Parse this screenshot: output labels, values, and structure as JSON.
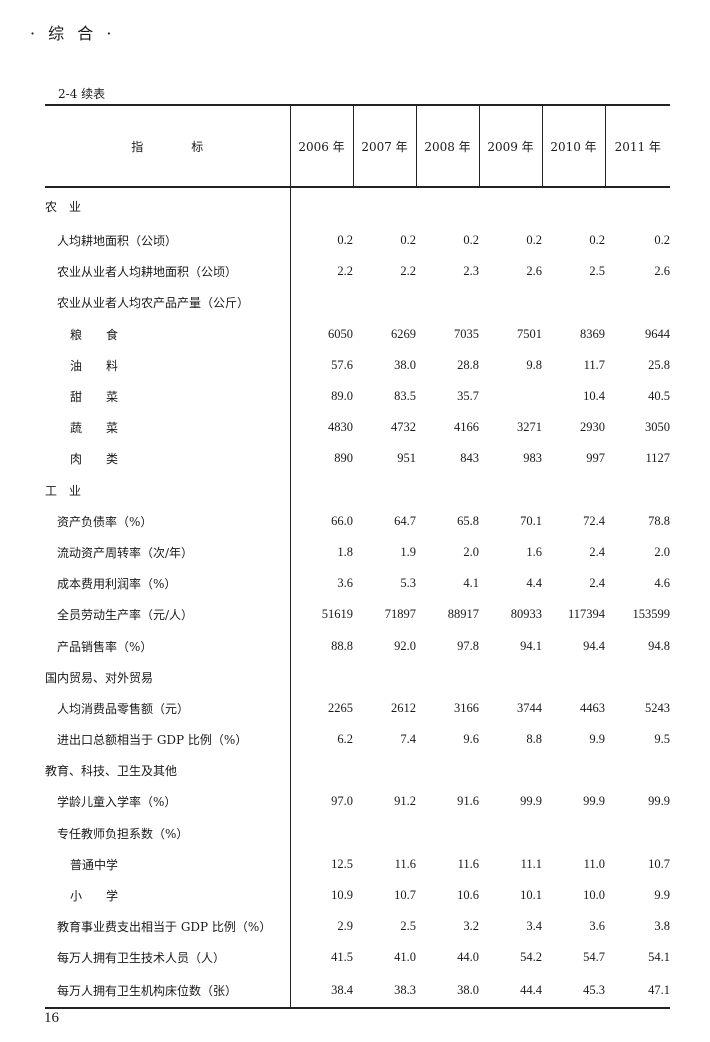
{
  "section_header": "· 综 合 ·",
  "table_caption": "2-4  续表",
  "page_number": "16",
  "table": {
    "columns": [
      "指　　　　标",
      "2006 年",
      "2007 年",
      "2008 年",
      "2009 年",
      "2010 年",
      "2011 年"
    ],
    "rows": [
      {
        "label": "农　业",
        "level": 0,
        "values": [
          "",
          "",
          "",
          "",
          "",
          ""
        ]
      },
      {
        "label": "人均耕地面积（公顷）",
        "level": 1,
        "values": [
          "0.2",
          "0.2",
          "0.2",
          "0.2",
          "0.2",
          "0.2"
        ]
      },
      {
        "label": "农业从业者人均耕地面积（公顷）",
        "level": 1,
        "values": [
          "2.2",
          "2.2",
          "2.3",
          "2.6",
          "2.5",
          "2.6"
        ]
      },
      {
        "label": "农业从业者人均农产品产量（公斤）",
        "level": 1,
        "values": [
          "",
          "",
          "",
          "",
          "",
          ""
        ]
      },
      {
        "label": "粮　　食",
        "level": 2,
        "values": [
          "6050",
          "6269",
          "7035",
          "7501",
          "8369",
          "9644"
        ]
      },
      {
        "label": "油　　料",
        "level": 2,
        "values": [
          "57.6",
          "38.0",
          "28.8",
          "9.8",
          "11.7",
          "25.8"
        ]
      },
      {
        "label": "甜　　菜",
        "level": 2,
        "values": [
          "89.0",
          "83.5",
          "35.7",
          "",
          "10.4",
          "40.5"
        ]
      },
      {
        "label": "蔬　　菜",
        "level": 2,
        "values": [
          "4830",
          "4732",
          "4166",
          "3271",
          "2930",
          "3050"
        ]
      },
      {
        "label": "肉　　类",
        "level": 2,
        "values": [
          "890",
          "951",
          "843",
          "983",
          "997",
          "1127"
        ]
      },
      {
        "label": "工　业",
        "level": 0,
        "values": [
          "",
          "",
          "",
          "",
          "",
          ""
        ]
      },
      {
        "label": "资产负债率（%）",
        "level": 1,
        "values": [
          "66.0",
          "64.7",
          "65.8",
          "70.1",
          "72.4",
          "78.8"
        ]
      },
      {
        "label": "流动资产周转率（次/年）",
        "level": 1,
        "values": [
          "1.8",
          "1.9",
          "2.0",
          "1.6",
          "2.4",
          "2.0"
        ]
      },
      {
        "label": "成本费用利润率（%）",
        "level": 1,
        "values": [
          "3.6",
          "5.3",
          "4.1",
          "4.4",
          "2.4",
          "4.6"
        ]
      },
      {
        "label": "全员劳动生产率（元/人）",
        "level": 1,
        "values": [
          "51619",
          "71897",
          "88917",
          "80933",
          "117394",
          "153599"
        ]
      },
      {
        "label": "产品销售率（%）",
        "level": 1,
        "values": [
          "88.8",
          "92.0",
          "97.8",
          "94.1",
          "94.4",
          "94.8"
        ]
      },
      {
        "label": "国内贸易、对外贸易",
        "level": 0,
        "values": [
          "",
          "",
          "",
          "",
          "",
          ""
        ]
      },
      {
        "label": "人均消费品零售额（元）",
        "level": 1,
        "values": [
          "2265",
          "2612",
          "3166",
          "3744",
          "4463",
          "5243"
        ]
      },
      {
        "label": "进出口总额相当于 GDP 比例（%）",
        "level": 1,
        "values": [
          "6.2",
          "7.4",
          "9.6",
          "8.8",
          "9.9",
          "9.5"
        ]
      },
      {
        "label": "教育、科技、卫生及其他",
        "level": 0,
        "values": [
          "",
          "",
          "",
          "",
          "",
          ""
        ]
      },
      {
        "label": "学龄儿童入学率（%）",
        "level": 1,
        "values": [
          "97.0",
          "91.2",
          "91.6",
          "99.9",
          "99.9",
          "99.9"
        ]
      },
      {
        "label": "专任教师负担系数（%）",
        "level": 1,
        "values": [
          "",
          "",
          "",
          "",
          "",
          ""
        ]
      },
      {
        "label": "普通中学",
        "level": 2,
        "values": [
          "12.5",
          "11.6",
          "11.6",
          "11.1",
          "11.0",
          "10.7"
        ]
      },
      {
        "label": "小　　学",
        "level": 2,
        "values": [
          "10.9",
          "10.7",
          "10.6",
          "10.1",
          "10.0",
          "9.9"
        ]
      },
      {
        "label": "教育事业费支出相当于 GDP 比例（%）",
        "level": 1,
        "values": [
          "2.9",
          "2.5",
          "3.2",
          "3.4",
          "3.6",
          "3.8"
        ]
      },
      {
        "label": "每万人拥有卫生技术人员（人）",
        "level": 1,
        "values": [
          "41.5",
          "41.0",
          "44.0",
          "54.2",
          "54.7",
          "54.1"
        ]
      },
      {
        "label": "每万人拥有卫生机构床位数（张）",
        "level": 1,
        "values": [
          "38.4",
          "38.3",
          "38.0",
          "44.4",
          "45.3",
          "47.1"
        ]
      }
    ]
  }
}
